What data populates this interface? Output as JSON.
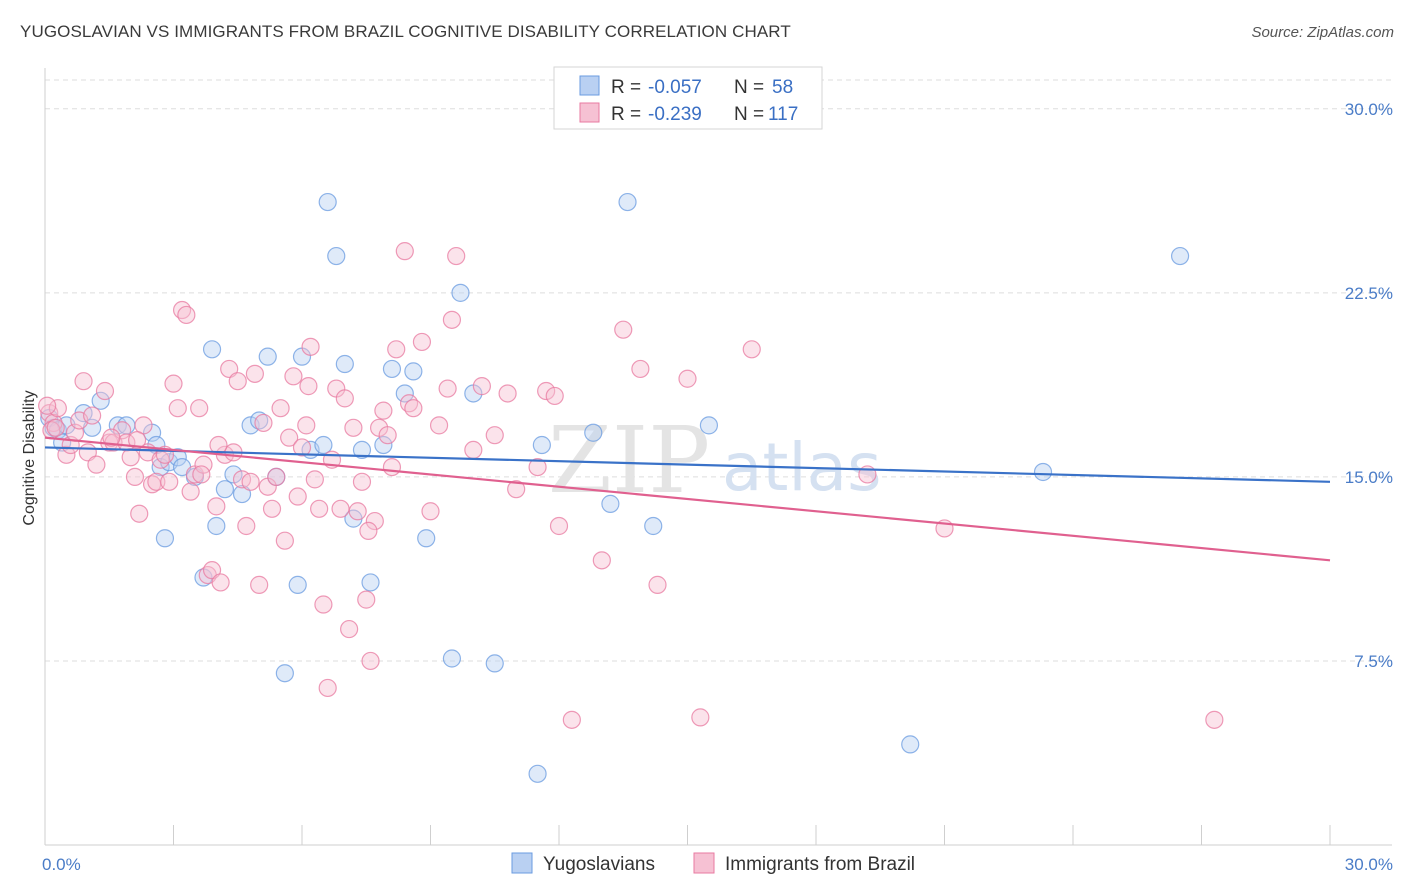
{
  "title": "YUGOSLAVIAN VS IMMIGRANTS FROM BRAZIL COGNITIVE DISABILITY CORRELATION CHART",
  "source": "Source: ZipAtlas.com",
  "watermark": {
    "zip": "ZIP",
    "atlas": "atlas"
  },
  "legend": {
    "r_label": "R =",
    "n_label": "N =",
    "series": [
      {
        "name": "Yugoslavians",
        "r": "-0.057",
        "n": "58",
        "color": "#6a9be0",
        "fill": "#b9d0f2"
      },
      {
        "name": "Immigrants from Brazil",
        "r": "-0.239",
        "n": "117",
        "color": "#e87aa0",
        "fill": "#f6c1d3"
      }
    ]
  },
  "chart_data": {
    "type": "scatter",
    "title": "YUGOSLAVIAN VS IMMIGRANTS FROM BRAZIL COGNITIVE DISABILITY CORRELATION CHART",
    "xlabel": "",
    "ylabel": "Cognitive Disability",
    "xlim": [
      0,
      30
    ],
    "ylim": [
      0,
      31.5
    ],
    "x_tick_labels": [
      "0.0%",
      "30.0%"
    ],
    "y_ticks": [
      7.5,
      15.0,
      22.5,
      30.0
    ],
    "y_tick_labels": [
      "7.5%",
      "15.0%",
      "22.5%",
      "30.0%"
    ],
    "grid": true,
    "legend_position": "top-center",
    "series": [
      {
        "name": "Yugoslavians",
        "color": "#3a72c8",
        "trend": {
          "x": [
            0,
            30
          ],
          "y": [
            16.2,
            14.8
          ]
        },
        "points": [
          [
            0.1,
            17.4
          ],
          [
            0.2,
            17.0
          ],
          [
            0.3,
            16.9
          ],
          [
            0.4,
            16.4
          ],
          [
            0.5,
            17.1
          ],
          [
            0.9,
            17.6
          ],
          [
            1.1,
            17.0
          ],
          [
            1.3,
            18.1
          ],
          [
            1.7,
            17.1
          ],
          [
            1.9,
            17.1
          ],
          [
            2.5,
            16.8
          ],
          [
            2.6,
            16.3
          ],
          [
            2.7,
            15.4
          ],
          [
            2.8,
            12.5
          ],
          [
            2.9,
            15.6
          ],
          [
            3.1,
            15.8
          ],
          [
            3.2,
            15.4
          ],
          [
            3.5,
            15.0
          ],
          [
            3.7,
            10.9
          ],
          [
            3.9,
            20.2
          ],
          [
            4.0,
            13.0
          ],
          [
            4.2,
            14.5
          ],
          [
            4.4,
            15.1
          ],
          [
            4.6,
            14.3
          ],
          [
            4.8,
            17.1
          ],
          [
            5.0,
            17.3
          ],
          [
            5.2,
            19.9
          ],
          [
            5.4,
            15.0
          ],
          [
            5.6,
            7.0
          ],
          [
            5.9,
            10.6
          ],
          [
            6.0,
            19.9
          ],
          [
            6.2,
            16.1
          ],
          [
            6.5,
            16.3
          ],
          [
            6.6,
            26.2
          ],
          [
            6.8,
            24.0
          ],
          [
            7.0,
            19.6
          ],
          [
            7.2,
            13.3
          ],
          [
            7.4,
            16.1
          ],
          [
            7.6,
            10.7
          ],
          [
            7.9,
            16.3
          ],
          [
            8.1,
            19.4
          ],
          [
            8.4,
            18.4
          ],
          [
            8.6,
            19.3
          ],
          [
            8.9,
            12.5
          ],
          [
            9.5,
            7.6
          ],
          [
            9.7,
            22.5
          ],
          [
            10.0,
            18.4
          ],
          [
            10.5,
            7.4
          ],
          [
            11.5,
            2.9
          ],
          [
            11.6,
            16.3
          ],
          [
            12.8,
            16.8
          ],
          [
            13.2,
            13.9
          ],
          [
            13.6,
            26.2
          ],
          [
            14.2,
            13.0
          ],
          [
            15.5,
            17.1
          ],
          [
            20.2,
            4.1
          ],
          [
            23.3,
            15.2
          ],
          [
            26.5,
            24.0
          ]
        ]
      },
      {
        "name": "Immigrants from Brazil",
        "color": "#e0608f",
        "trend": {
          "x": [
            0,
            30
          ],
          "y": [
            16.6,
            11.6
          ]
        },
        "points": [
          [
            0.1,
            17.6
          ],
          [
            0.2,
            17.2
          ],
          [
            0.3,
            17.8
          ],
          [
            0.5,
            15.9
          ],
          [
            0.6,
            16.3
          ],
          [
            0.7,
            16.8
          ],
          [
            0.8,
            17.3
          ],
          [
            0.9,
            18.9
          ],
          [
            1.0,
            16.0
          ],
          [
            1.1,
            17.5
          ],
          [
            1.2,
            15.5
          ],
          [
            1.4,
            18.5
          ],
          [
            1.5,
            16.4
          ],
          [
            1.6,
            16.4
          ],
          [
            1.8,
            16.9
          ],
          [
            1.9,
            16.4
          ],
          [
            2.0,
            15.8
          ],
          [
            2.1,
            15.0
          ],
          [
            2.2,
            13.5
          ],
          [
            2.3,
            17.1
          ],
          [
            2.4,
            16.0
          ],
          [
            2.5,
            14.7
          ],
          [
            2.6,
            14.8
          ],
          [
            2.7,
            15.7
          ],
          [
            2.8,
            15.9
          ],
          [
            2.9,
            14.8
          ],
          [
            3.0,
            18.8
          ],
          [
            3.1,
            17.8
          ],
          [
            3.2,
            21.8
          ],
          [
            3.3,
            21.6
          ],
          [
            3.4,
            14.4
          ],
          [
            3.5,
            15.1
          ],
          [
            3.6,
            17.8
          ],
          [
            3.7,
            15.5
          ],
          [
            3.8,
            11.0
          ],
          [
            3.9,
            11.2
          ],
          [
            4.0,
            13.8
          ],
          [
            4.1,
            10.7
          ],
          [
            4.2,
            15.9
          ],
          [
            4.3,
            19.4
          ],
          [
            4.4,
            16.0
          ],
          [
            4.5,
            18.9
          ],
          [
            4.6,
            14.9
          ],
          [
            4.7,
            13.0
          ],
          [
            4.8,
            14.8
          ],
          [
            4.9,
            19.2
          ],
          [
            5.0,
            10.6
          ],
          [
            5.1,
            17.2
          ],
          [
            5.2,
            14.6
          ],
          [
            5.3,
            13.7
          ],
          [
            5.4,
            15.0
          ],
          [
            5.5,
            17.8
          ],
          [
            5.6,
            12.4
          ],
          [
            5.7,
            16.6
          ],
          [
            5.8,
            19.1
          ],
          [
            5.9,
            14.2
          ],
          [
            6.0,
            16.2
          ],
          [
            6.1,
            17.1
          ],
          [
            6.2,
            20.3
          ],
          [
            6.3,
            14.9
          ],
          [
            6.4,
            13.7
          ],
          [
            6.5,
            9.8
          ],
          [
            6.6,
            6.4
          ],
          [
            6.7,
            15.7
          ],
          [
            6.8,
            18.6
          ],
          [
            6.9,
            13.7
          ],
          [
            7.0,
            18.2
          ],
          [
            7.1,
            8.8
          ],
          [
            7.2,
            17.0
          ],
          [
            7.3,
            13.6
          ],
          [
            7.4,
            14.8
          ],
          [
            7.5,
            10.0
          ],
          [
            7.6,
            7.5
          ],
          [
            7.7,
            13.2
          ],
          [
            7.8,
            17.0
          ],
          [
            7.9,
            17.7
          ],
          [
            8.0,
            16.7
          ],
          [
            8.1,
            15.4
          ],
          [
            8.2,
            20.2
          ],
          [
            8.4,
            24.2
          ],
          [
            8.5,
            18.0
          ],
          [
            8.6,
            17.8
          ],
          [
            8.8,
            20.5
          ],
          [
            9.0,
            13.6
          ],
          [
            9.2,
            17.1
          ],
          [
            9.4,
            18.6
          ],
          [
            9.5,
            21.4
          ],
          [
            9.6,
            24.0
          ],
          [
            10.0,
            16.1
          ],
          [
            10.2,
            18.7
          ],
          [
            10.5,
            16.7
          ],
          [
            10.8,
            18.4
          ],
          [
            11.0,
            14.5
          ],
          [
            11.5,
            15.4
          ],
          [
            11.7,
            18.5
          ],
          [
            11.9,
            18.3
          ],
          [
            12.0,
            13.0
          ],
          [
            12.3,
            5.1
          ],
          [
            13.0,
            11.6
          ],
          [
            13.5,
            21.0
          ],
          [
            13.9,
            19.4
          ],
          [
            14.3,
            10.6
          ],
          [
            15.0,
            19.0
          ],
          [
            15.3,
            5.2
          ],
          [
            16.5,
            20.2
          ],
          [
            19.2,
            15.1
          ],
          [
            21.0,
            12.9
          ],
          [
            27.3,
            5.1
          ],
          [
            0.05,
            17.9
          ],
          [
            0.15,
            16.9
          ],
          [
            0.25,
            17.0
          ],
          [
            1.55,
            16.6
          ],
          [
            2.15,
            16.5
          ],
          [
            3.65,
            15.1
          ],
          [
            4.05,
            16.3
          ],
          [
            6.15,
            18.7
          ],
          [
            7.55,
            12.8
          ]
        ]
      }
    ]
  }
}
